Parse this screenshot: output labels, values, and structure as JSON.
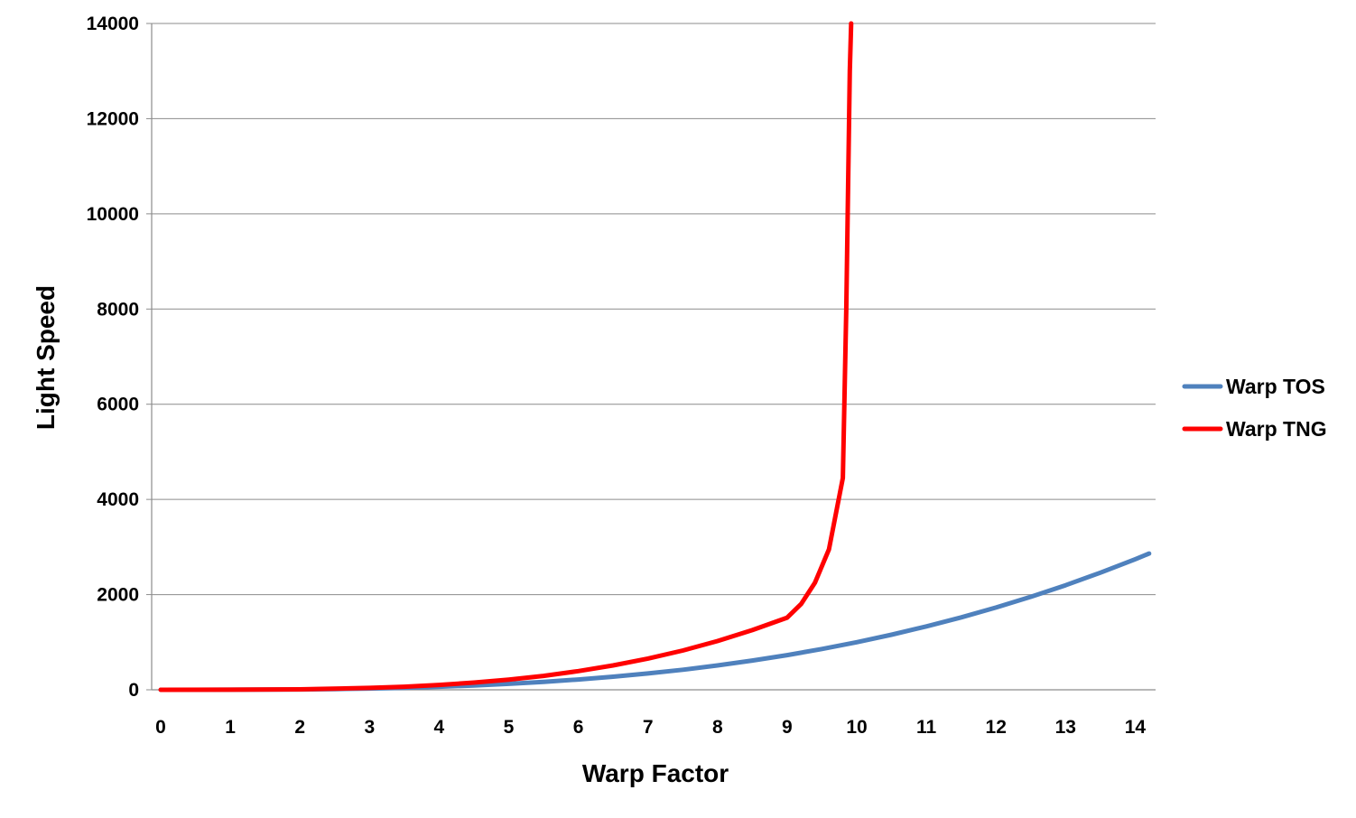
{
  "chart_data": {
    "type": "line",
    "title": "",
    "xlabel": "Warp Factor",
    "ylabel": "Light Speed",
    "xlim": [
      0,
      14.2
    ],
    "ylim": [
      0,
      14000
    ],
    "x_ticks": [
      "0",
      "1",
      "2",
      "3",
      "4",
      "5",
      "6",
      "7",
      "8",
      "9",
      "10",
      "11",
      "12",
      "13",
      "14"
    ],
    "y_ticks": [
      "0",
      "2000",
      "4000",
      "6000",
      "8000",
      "10000",
      "12000",
      "14000"
    ],
    "grid": "horizontal",
    "legend_position": "right",
    "series": [
      {
        "name": "Warp TOS",
        "color": "#4F81BD",
        "x": [
          0,
          0.5,
          1,
          1.5,
          2,
          2.5,
          3,
          3.5,
          4,
          4.5,
          5,
          5.5,
          6,
          6.5,
          7,
          7.5,
          8,
          8.5,
          9,
          9.5,
          10,
          10.5,
          11,
          11.5,
          12,
          12.5,
          13,
          13.5,
          14,
          14.2
        ],
        "y": [
          0,
          0.1,
          1,
          3.4,
          8,
          15.6,
          27,
          42.9,
          64,
          91.1,
          125,
          166,
          216,
          275,
          343,
          422,
          512,
          614,
          729,
          857,
          1000,
          1158,
          1331,
          1521,
          1728,
          1953,
          2197,
          2460,
          2744,
          2863
        ]
      },
      {
        "name": "Warp TNG",
        "color": "#FF0000",
        "x": [
          0,
          1,
          2,
          3,
          3.5,
          4,
          4.5,
          5,
          5.5,
          6,
          6.5,
          7,
          7.5,
          8,
          8.5,
          9,
          9.2,
          9.4,
          9.6,
          9.8,
          9.85,
          9.9,
          9.92
        ],
        "y": [
          0,
          1,
          10,
          39,
          64,
          102,
          152,
          214,
          293,
          392,
          512,
          656,
          825,
          1024,
          1254,
          1516,
          1800,
          2250,
          2950,
          4450,
          8000,
          13000,
          14000
        ]
      }
    ]
  }
}
